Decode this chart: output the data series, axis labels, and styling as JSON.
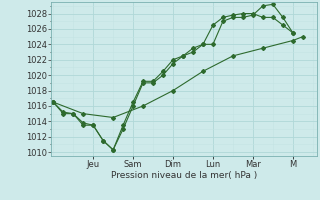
{
  "xlabel": "Pression niveau de la mer( hPa )",
  "bg_color": "#ceeaea",
  "grid_color": "#b0d8d8",
  "grid_color_minor": "#c4e4e4",
  "line_color": "#2d6a2d",
  "ylim": [
    1009.5,
    1029.5
  ],
  "ytick_vals": [
    1010,
    1012,
    1014,
    1016,
    1018,
    1020,
    1022,
    1024,
    1026,
    1028
  ],
  "day_labels": [
    "Jeu",
    "Sam",
    "Dim",
    "Lun",
    "Mar",
    "M"
  ],
  "day_positions": [
    2.0,
    4.0,
    6.0,
    8.0,
    10.0,
    12.0
  ],
  "xlim": [
    -0.1,
    13.2
  ],
  "line1_x": [
    0.0,
    0.5,
    1.0,
    1.5,
    2.0,
    2.5,
    3.0,
    3.5,
    4.0,
    4.5,
    5.0,
    5.5,
    6.0,
    6.5,
    7.0,
    7.5,
    8.0,
    8.5,
    9.0,
    9.5,
    10.0,
    10.5,
    11.0,
    11.5,
    12.0
  ],
  "line1_y": [
    1016.5,
    1015.2,
    1015.0,
    1013.5,
    1013.5,
    1011.5,
    1010.3,
    1013.0,
    1016.0,
    1019.0,
    1019.0,
    1020.0,
    1021.5,
    1022.5,
    1023.0,
    1024.0,
    1024.0,
    1027.0,
    1027.5,
    1027.5,
    1027.8,
    1029.0,
    1029.2,
    1027.5,
    1025.5
  ],
  "line2_x": [
    0.0,
    0.5,
    1.0,
    1.5,
    2.0,
    2.5,
    3.0,
    3.5,
    4.0,
    4.5,
    5.0,
    5.5,
    6.0,
    6.5,
    7.0,
    7.5,
    8.0,
    8.5,
    9.0,
    9.5,
    10.0,
    10.5,
    11.0,
    11.5,
    12.0
  ],
  "line2_y": [
    1016.5,
    1015.0,
    1015.0,
    1013.8,
    1013.5,
    1011.5,
    1010.3,
    1013.5,
    1016.5,
    1019.2,
    1019.2,
    1020.5,
    1022.0,
    1022.5,
    1023.5,
    1024.0,
    1026.5,
    1027.5,
    1027.8,
    1028.0,
    1028.0,
    1027.5,
    1027.5,
    1026.5,
    1025.5
  ],
  "line3_x": [
    0.0,
    1.5,
    3.0,
    4.5,
    6.0,
    7.5,
    9.0,
    10.5,
    12.0,
    12.5
  ],
  "line3_y": [
    1016.5,
    1015.0,
    1014.5,
    1016.0,
    1018.0,
    1020.5,
    1022.5,
    1023.5,
    1024.5,
    1025.0
  ]
}
